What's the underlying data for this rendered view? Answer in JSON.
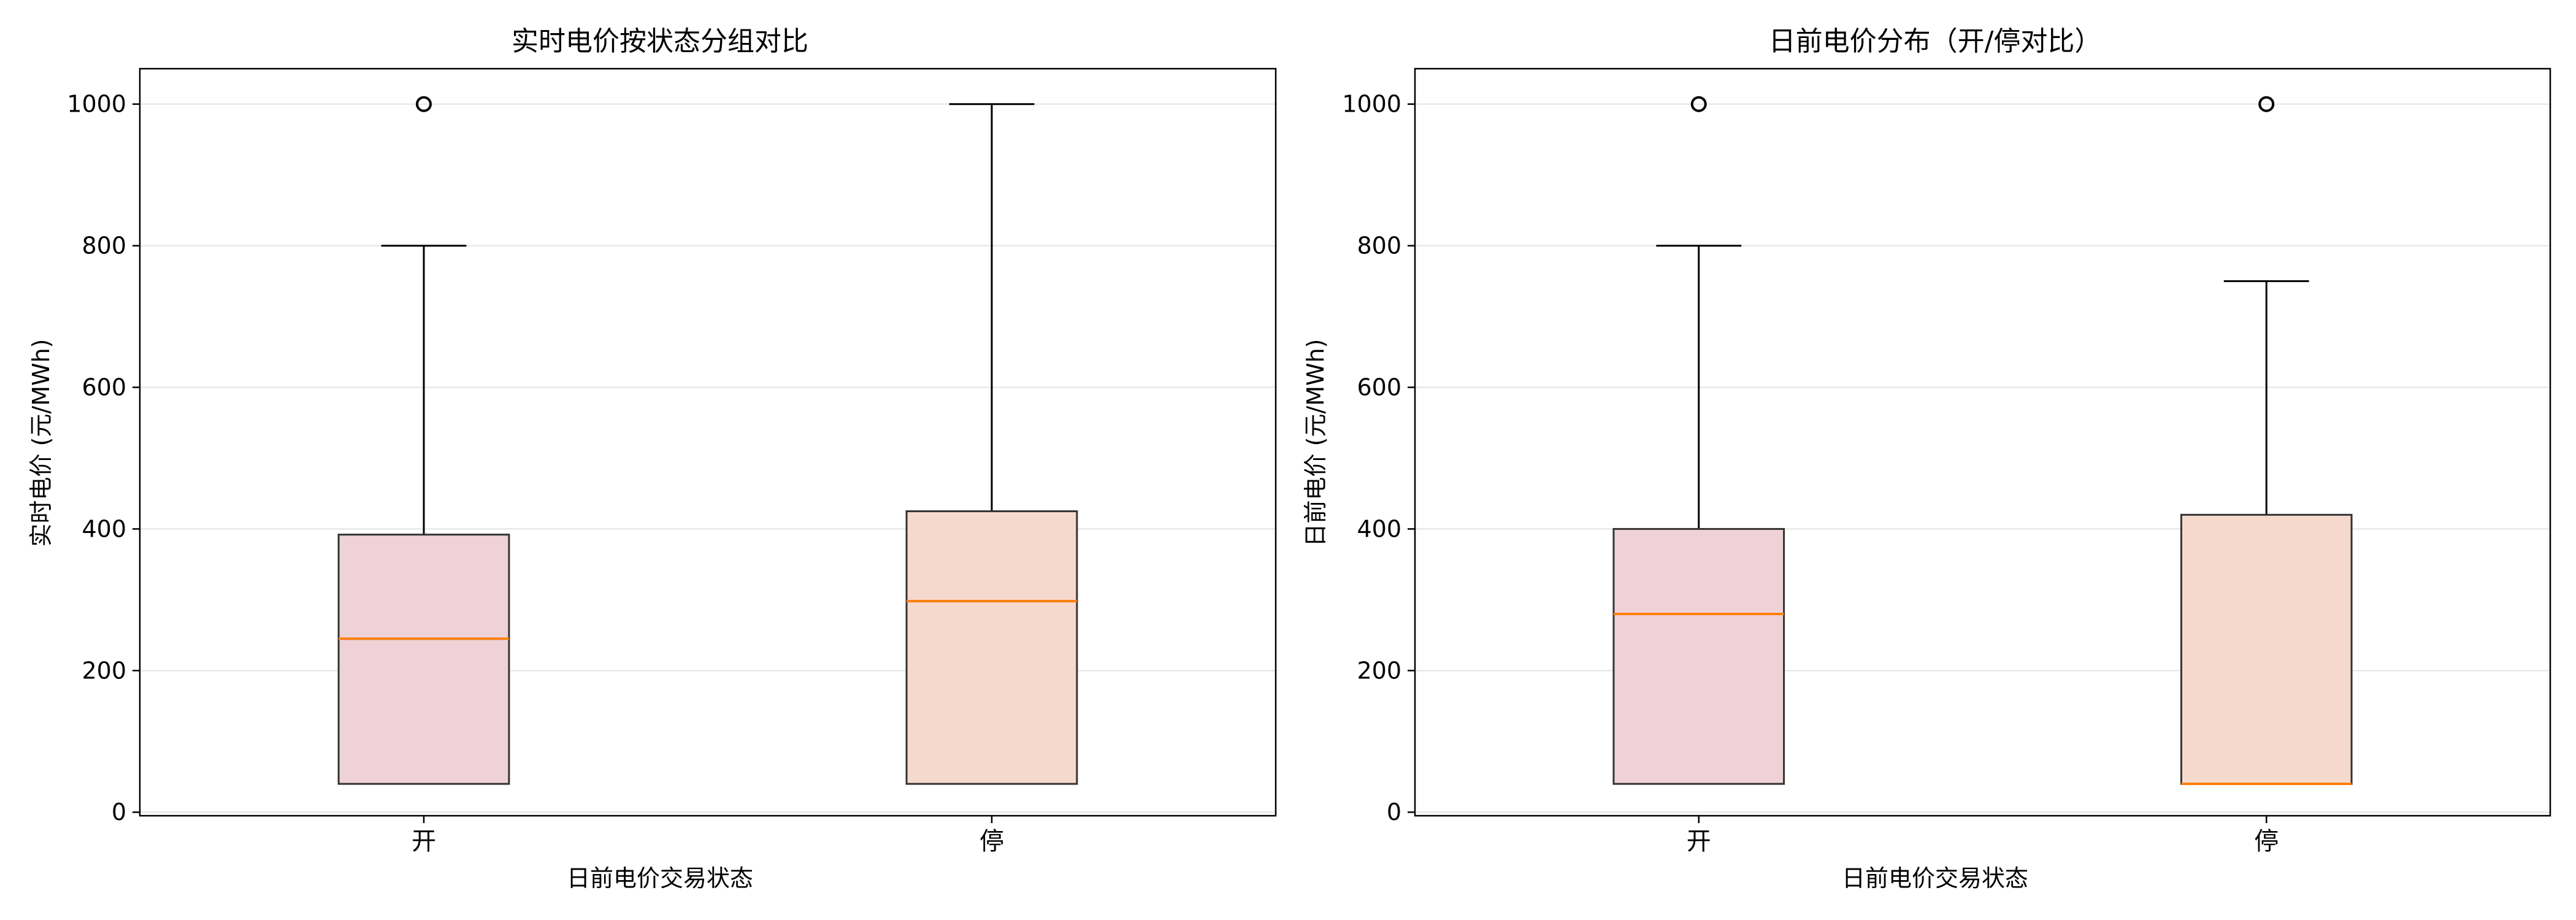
{
  "chart_data": [
    {
      "type": "boxplot",
      "title": "实时电价按状态分组对比",
      "xlabel": "日前电价交易状态",
      "ylabel": "实时电价 (元/MWh)",
      "ylim": [
        -5,
        1050
      ],
      "yticks": [
        0,
        200,
        400,
        600,
        800,
        1000
      ],
      "grid": "y",
      "categories": [
        "开",
        "停"
      ],
      "boxes": [
        {
          "label": "开",
          "whislo": 40,
          "q1": 40,
          "med": 245,
          "q3": 392,
          "whishi": 800,
          "fliers": [
            1000
          ],
          "color": "#efd2d7"
        },
        {
          "label": "停",
          "whislo": 40,
          "q1": 40,
          "med": 298,
          "q3": 425,
          "whishi": 1000,
          "fliers": [],
          "color": "#f6d9cd"
        }
      ],
      "median_color": "#ff7f0e"
    },
    {
      "type": "boxplot",
      "title": "日前电价分布（开/停对比）",
      "xlabel": "日前电价交易状态",
      "ylabel": "日前电价 (元/MWh)",
      "ylim": [
        -5,
        1050
      ],
      "yticks": [
        0,
        200,
        400,
        600,
        800,
        1000
      ],
      "grid": "y",
      "categories": [
        "开",
        "停"
      ],
      "boxes": [
        {
          "label": "开",
          "whislo": 40,
          "q1": 40,
          "med": 280,
          "q3": 400,
          "whishi": 800,
          "fliers": [
            1000
          ],
          "color": "#efd2d7"
        },
        {
          "label": "停",
          "whislo": 40,
          "q1": 40,
          "med": 40,
          "q3": 420,
          "whishi": 750,
          "fliers": [
            1000
          ],
          "color": "#f6d9cd"
        }
      ],
      "median_color": "#ff7f0e"
    }
  ]
}
